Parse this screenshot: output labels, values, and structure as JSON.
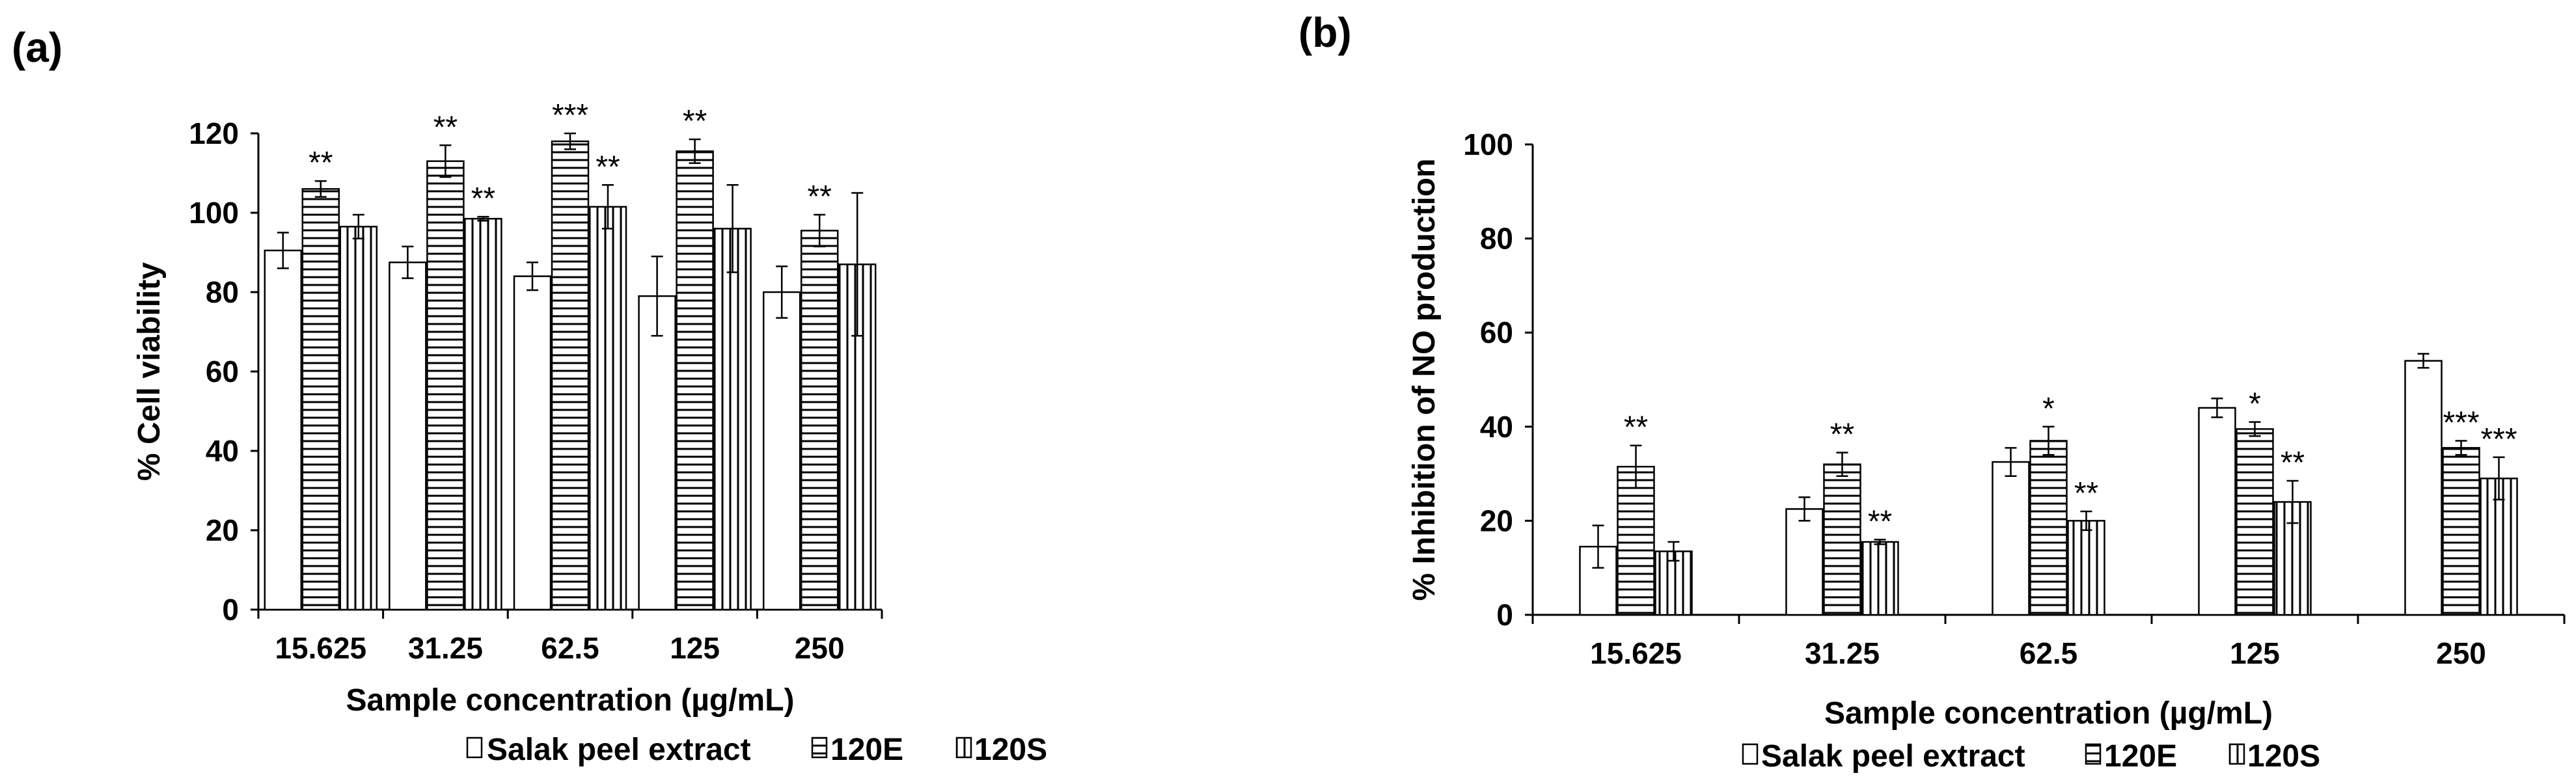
{
  "chart_data": [
    {
      "panel": "(a)",
      "type": "bar",
      "xlabel": "Sample concentration (µg/mL)",
      "ylabel": "% Cell viability",
      "ylim": [
        0,
        120
      ],
      "yticks": [
        "0",
        "20",
        "40",
        "60",
        "80",
        "100",
        "120"
      ],
      "categories": [
        "15.625",
        "31.25",
        "62.5",
        "125",
        "250"
      ],
      "legend_position": "bottom",
      "series": [
        {
          "name": "Salak peel extract",
          "pattern": "empty",
          "values": [
            90.5,
            87.5,
            84,
            79,
            80
          ],
          "errors": [
            4.5,
            4,
            3.5,
            10,
            6.5
          ],
          "sig": [
            "",
            "",
            "",
            "",
            ""
          ]
        },
        {
          "name": "120E",
          "pattern": "horizontal",
          "values": [
            106,
            113,
            118,
            115.5,
            95.5
          ],
          "errors": [
            2,
            4,
            2,
            3,
            4
          ],
          "sig": [
            "**",
            "**",
            "***",
            "**",
            "**"
          ]
        },
        {
          "name": "120S",
          "pattern": "vertical",
          "values": [
            96.5,
            98.5,
            101.5,
            96,
            87
          ],
          "errors": [
            3,
            0.5,
            5.5,
            11,
            18
          ],
          "sig": [
            "",
            "**",
            "**",
            "",
            ""
          ]
        }
      ]
    },
    {
      "panel": "(b)",
      "type": "bar",
      "xlabel": "Sample concentration (µg/mL)",
      "ylabel": "% Inhibition of NO production",
      "ylim": [
        0,
        100
      ],
      "yticks": [
        "0",
        "20",
        "40",
        "60",
        "80",
        "100"
      ],
      "categories": [
        "15.625",
        "31.25",
        "62.5",
        "125",
        "250"
      ],
      "legend_position": "bottom",
      "series": [
        {
          "name": "Salak peel extract",
          "pattern": "empty",
          "values": [
            14.5,
            22.5,
            32.5,
            44,
            54
          ],
          "errors": [
            4.5,
            2.5,
            3,
            2,
            1.5
          ],
          "sig": [
            "",
            "",
            "",
            "",
            ""
          ]
        },
        {
          "name": "120E",
          "pattern": "horizontal",
          "values": [
            31.5,
            32,
            37,
            39.5,
            35.5
          ],
          "errors": [
            4.5,
            2.5,
            3,
            1.5,
            1.5
          ],
          "sig": [
            "**",
            "**",
            "*",
            "*",
            "***"
          ]
        },
        {
          "name": "120S",
          "pattern": "vertical",
          "values": [
            13.5,
            15.5,
            20,
            24,
            29
          ],
          "errors": [
            2,
            0.5,
            2,
            4.5,
            4.5
          ],
          "sig": [
            "",
            "**",
            "**",
            "**",
            "***"
          ]
        }
      ]
    }
  ]
}
